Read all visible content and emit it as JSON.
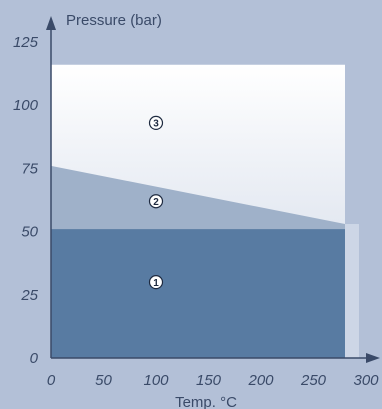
{
  "colors": {
    "background": "#b3c0d7",
    "plot_fill_top": "#ffffff",
    "plot_fill_bottom": "#cdd6e6",
    "zone1": "#587ba2",
    "zone2": "#9fb1c9",
    "axis": "#3a4a68",
    "label_text": "#1e2a40"
  },
  "chart_data": {
    "type": "area",
    "title": "",
    "xlabel": "Temp. °C",
    "ylabel": "Pressure (bar)",
    "xlim": [
      0,
      300
    ],
    "ylim": [
      0,
      125
    ],
    "x_ticks": [
      "0",
      "50",
      "100",
      "150",
      "200",
      "250",
      "300"
    ],
    "y_ticks": [
      "0",
      "25",
      "50",
      "75",
      "100",
      "125"
    ],
    "grid": false,
    "zones": [
      {
        "label": "③",
        "polygon": [
          [
            0,
            0
          ],
          [
            280,
            0
          ],
          [
            280,
            116
          ],
          [
            0,
            116
          ]
        ],
        "label_at": [
          100,
          93
        ]
      },
      {
        "label": "②",
        "polygon": [
          [
            0,
            0
          ],
          [
            280,
            0
          ],
          [
            280,
            53
          ],
          [
            0,
            76
          ]
        ],
        "label_at": [
          100,
          62
        ]
      },
      {
        "label": "①",
        "polygon": [
          [
            0,
            0
          ],
          [
            280,
            0
          ],
          [
            280,
            51
          ],
          [
            0,
            51
          ]
        ],
        "label_at": [
          100,
          30
        ]
      }
    ]
  }
}
